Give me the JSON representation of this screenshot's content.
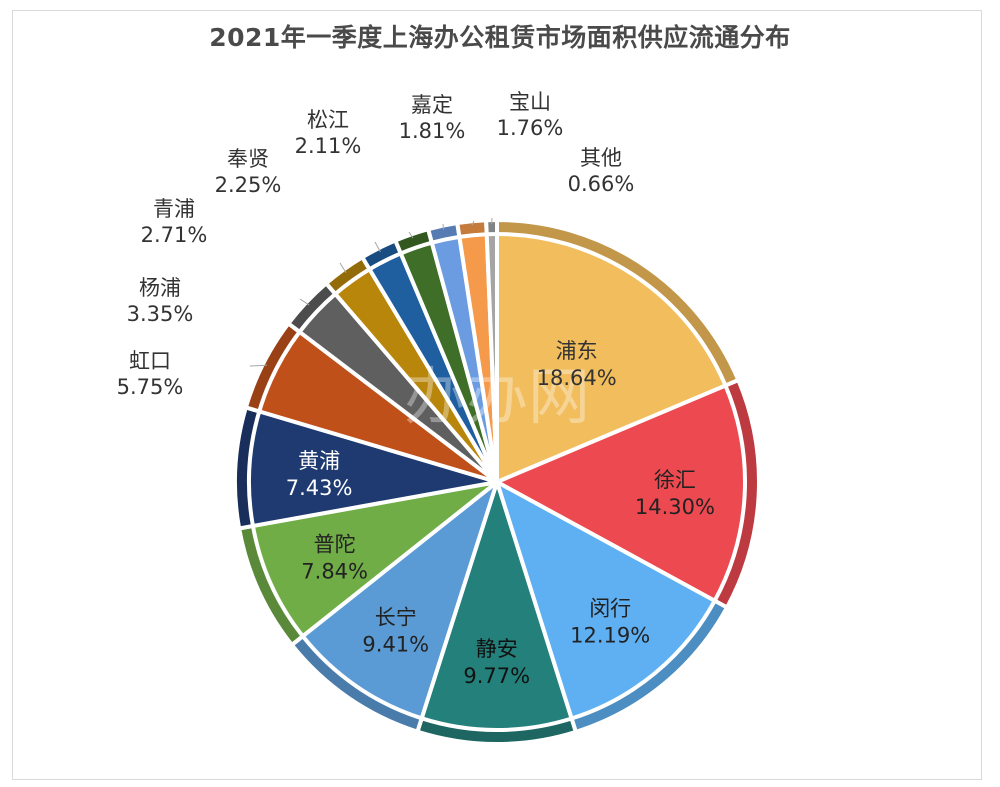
{
  "watermark": "办办网",
  "chart_data": {
    "type": "pie",
    "title": "2021年一季度上海办公租赁市场面积供应流通分布",
    "series": [
      {
        "name": "浦东",
        "value": 18.64,
        "label": "18.64%",
        "color": "#f2bd5c",
        "label_inside": true,
        "label_color": "#333333"
      },
      {
        "name": "徐汇",
        "value": 14.3,
        "label": "14.30%",
        "color": "#ec4a50",
        "label_inside": true,
        "label_color": "#222222"
      },
      {
        "name": "闵行",
        "value": 12.19,
        "label": "12.19%",
        "color": "#5fb0f3",
        "label_inside": true,
        "label_color": "#222222"
      },
      {
        "name": "静安",
        "value": 9.77,
        "label": "9.77%",
        "color": "#24807a",
        "label_inside": true,
        "label_color": "#111111"
      },
      {
        "name": "长宁",
        "value": 9.41,
        "label": "9.41%",
        "color": "#5b9bd5",
        "label_inside": true,
        "label_color": "#222222"
      },
      {
        "name": "普陀",
        "value": 7.84,
        "label": "7.84%",
        "color": "#70ad47",
        "label_inside": true,
        "label_color": "#222222"
      },
      {
        "name": "黄浦",
        "value": 7.43,
        "label": "7.43%",
        "color": "#1f3a70",
        "label_inside": true,
        "label_color": "#ffffff"
      },
      {
        "name": "虹口",
        "value": 5.75,
        "label": "5.75%",
        "color": "#c0501a",
        "label_inside": false,
        "label_color": "#333333"
      },
      {
        "name": "杨浦",
        "value": 3.35,
        "label": "3.35%",
        "color": "#5f5f5f",
        "label_inside": false,
        "label_color": "#333333"
      },
      {
        "name": "青浦",
        "value": 2.71,
        "label": "2.71%",
        "color": "#b8860b",
        "label_inside": false,
        "label_color": "#333333"
      },
      {
        "name": "奉贤",
        "value": 2.25,
        "label": "2.25%",
        "color": "#1f5fa0",
        "label_inside": false,
        "label_color": "#333333"
      },
      {
        "name": "松江",
        "value": 2.11,
        "label": "2.11%",
        "color": "#3f6e28",
        "label_inside": false,
        "label_color": "#333333"
      },
      {
        "name": "嘉定",
        "value": 1.81,
        "label": "1.81%",
        "color": "#6b9be0",
        "label_inside": false,
        "label_color": "#333333"
      },
      {
        "name": "宝山",
        "value": 1.76,
        "label": "1.76%",
        "color": "#f59a4a",
        "label_inside": false,
        "label_color": "#333333"
      },
      {
        "name": "其他",
        "value": 0.66,
        "label": "0.66%",
        "color": "#a5a5a5",
        "label_inside": false,
        "label_color": "#333333"
      }
    ]
  }
}
